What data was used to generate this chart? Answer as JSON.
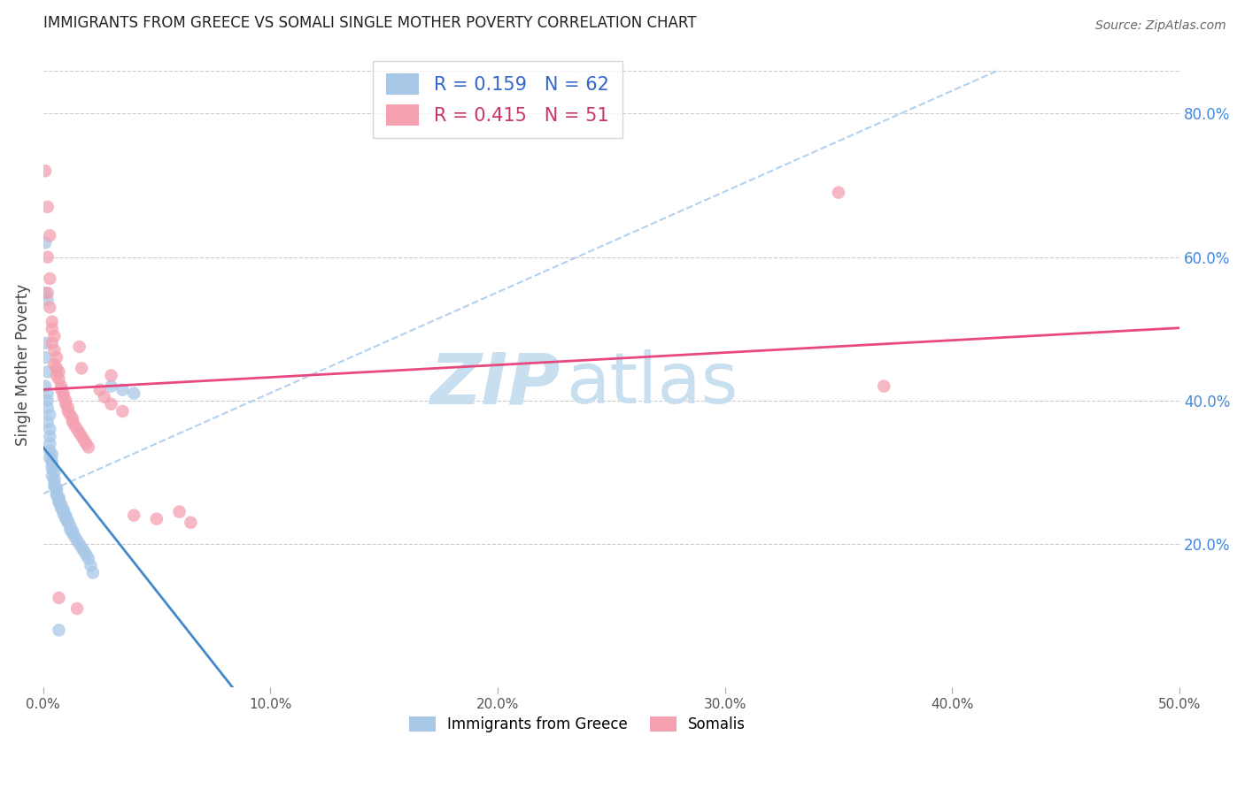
{
  "title": "IMMIGRANTS FROM GREECE VS SOMALI SINGLE MOTHER POVERTY CORRELATION CHART",
  "source": "Source: ZipAtlas.com",
  "ylabel": "Single Mother Poverty",
  "legend_label1": "Immigrants from Greece",
  "legend_label2": "Somalis",
  "R1": 0.159,
  "N1": 62,
  "R2": 0.415,
  "N2": 51,
  "color_blue": "#a8c8e8",
  "color_pink": "#f4a0b0",
  "color_blue_line": "#4488cc",
  "color_pink_line": "#e84880",
  "color_diag": "#aaccee",
  "xmin": 0.0,
  "xmax": 0.5,
  "ymin": 0.0,
  "ymax": 0.9,
  "grid_color": "#cccccc",
  "background": "#ffffff",
  "ylabel_right_ticks": [
    "20.0%",
    "40.0%",
    "60.0%",
    "80.0%"
  ],
  "ylabel_right_vals": [
    0.2,
    0.4,
    0.6,
    0.8
  ],
  "scatter_blue": [
    [
      0.001,
      0.62
    ],
    [
      0.001,
      0.55
    ],
    [
      0.002,
      0.54
    ],
    [
      0.001,
      0.48
    ],
    [
      0.001,
      0.46
    ],
    [
      0.002,
      0.44
    ],
    [
      0.001,
      0.42
    ],
    [
      0.002,
      0.41
    ],
    [
      0.002,
      0.4
    ],
    [
      0.002,
      0.39
    ],
    [
      0.003,
      0.38
    ],
    [
      0.002,
      0.37
    ],
    [
      0.003,
      0.36
    ],
    [
      0.003,
      0.35
    ],
    [
      0.003,
      0.34
    ],
    [
      0.003,
      0.33
    ],
    [
      0.004,
      0.325
    ],
    [
      0.003,
      0.32
    ],
    [
      0.004,
      0.315
    ],
    [
      0.004,
      0.31
    ],
    [
      0.004,
      0.305
    ],
    [
      0.005,
      0.3
    ],
    [
      0.004,
      0.295
    ],
    [
      0.005,
      0.29
    ],
    [
      0.005,
      0.285
    ],
    [
      0.005,
      0.28
    ],
    [
      0.006,
      0.278
    ],
    [
      0.006,
      0.275
    ],
    [
      0.006,
      0.27
    ],
    [
      0.006,
      0.268
    ],
    [
      0.007,
      0.265
    ],
    [
      0.007,
      0.262
    ],
    [
      0.007,
      0.26
    ],
    [
      0.007,
      0.258
    ],
    [
      0.008,
      0.255
    ],
    [
      0.008,
      0.252
    ],
    [
      0.008,
      0.25
    ],
    [
      0.009,
      0.248
    ],
    [
      0.009,
      0.245
    ],
    [
      0.009,
      0.242
    ],
    [
      0.01,
      0.24
    ],
    [
      0.01,
      0.238
    ],
    [
      0.01,
      0.235
    ],
    [
      0.011,
      0.232
    ],
    [
      0.011,
      0.23
    ],
    [
      0.012,
      0.225
    ],
    [
      0.012,
      0.22
    ],
    [
      0.013,
      0.218
    ],
    [
      0.013,
      0.215
    ],
    [
      0.014,
      0.21
    ],
    [
      0.015,
      0.205
    ],
    [
      0.016,
      0.2
    ],
    [
      0.017,
      0.195
    ],
    [
      0.018,
      0.19
    ],
    [
      0.019,
      0.185
    ],
    [
      0.02,
      0.18
    ],
    [
      0.021,
      0.17
    ],
    [
      0.022,
      0.16
    ],
    [
      0.03,
      0.42
    ],
    [
      0.035,
      0.415
    ],
    [
      0.04,
      0.41
    ],
    [
      0.007,
      0.08
    ]
  ],
  "scatter_pink": [
    [
      0.001,
      0.72
    ],
    [
      0.002,
      0.67
    ],
    [
      0.003,
      0.63
    ],
    [
      0.002,
      0.6
    ],
    [
      0.003,
      0.57
    ],
    [
      0.002,
      0.55
    ],
    [
      0.003,
      0.53
    ],
    [
      0.004,
      0.51
    ],
    [
      0.004,
      0.5
    ],
    [
      0.005,
      0.49
    ],
    [
      0.004,
      0.48
    ],
    [
      0.005,
      0.47
    ],
    [
      0.006,
      0.46
    ],
    [
      0.005,
      0.45
    ],
    [
      0.006,
      0.445
    ],
    [
      0.007,
      0.44
    ],
    [
      0.006,
      0.435
    ],
    [
      0.007,
      0.43
    ],
    [
      0.008,
      0.42
    ],
    [
      0.008,
      0.415
    ],
    [
      0.009,
      0.41
    ],
    [
      0.009,
      0.405
    ],
    [
      0.01,
      0.4
    ],
    [
      0.01,
      0.395
    ],
    [
      0.011,
      0.39
    ],
    [
      0.011,
      0.385
    ],
    [
      0.012,
      0.38
    ],
    [
      0.013,
      0.375
    ],
    [
      0.013,
      0.37
    ],
    [
      0.014,
      0.365
    ],
    [
      0.015,
      0.36
    ],
    [
      0.016,
      0.355
    ],
    [
      0.017,
      0.35
    ],
    [
      0.018,
      0.345
    ],
    [
      0.019,
      0.34
    ],
    [
      0.02,
      0.335
    ],
    [
      0.025,
      0.415
    ],
    [
      0.027,
      0.405
    ],
    [
      0.03,
      0.395
    ],
    [
      0.035,
      0.385
    ],
    [
      0.06,
      0.245
    ],
    [
      0.065,
      0.23
    ],
    [
      0.35,
      0.69
    ],
    [
      0.37,
      0.42
    ],
    [
      0.007,
      0.125
    ],
    [
      0.015,
      0.11
    ],
    [
      0.04,
      0.24
    ],
    [
      0.05,
      0.235
    ],
    [
      0.016,
      0.475
    ],
    [
      0.017,
      0.445
    ],
    [
      0.03,
      0.435
    ]
  ]
}
